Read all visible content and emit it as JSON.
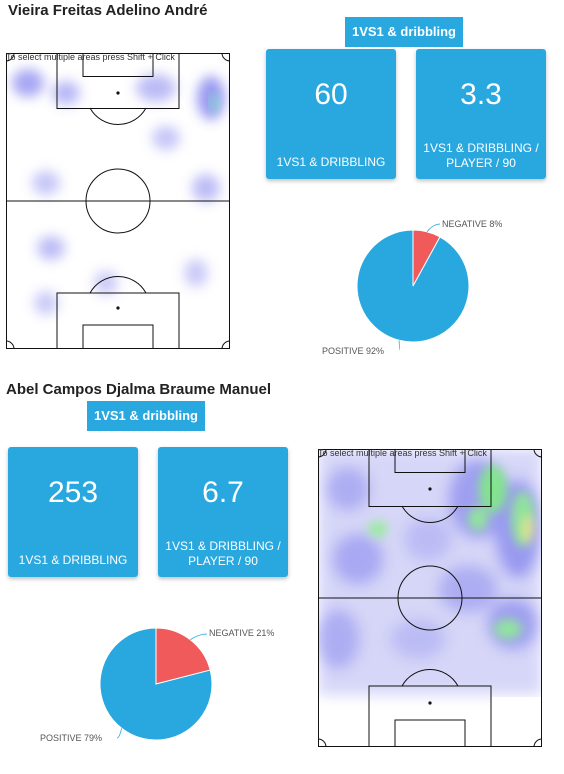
{
  "players": [
    {
      "name": "Vieira Freitas Adelino André",
      "badge": "1VS1 & dribbling",
      "pitch_hint": "To select multiple areas press Shift + Click",
      "stats": [
        {
          "value": "60",
          "label": "1VS1 & DRIBBLING"
        },
        {
          "value": "3.3",
          "label": "1VS1 & DRIBBLING / PLAYER / 90"
        }
      ],
      "pie_labels": {
        "negative": "NEGATIVE 8%",
        "positive": "POSITIVE 92%"
      }
    },
    {
      "name": "Abel Campos Djalma Braume Manuel",
      "badge": "1VS1 & dribbling",
      "pitch_hint": "To select multiple areas press Shift + Click",
      "stats": [
        {
          "value": "253",
          "label": "1VS1 & DRIBBLING"
        },
        {
          "value": "6.7",
          "label": "1VS1 & DRIBBLING / PLAYER / 90"
        }
      ],
      "pie_labels": {
        "negative": "NEGATIVE 21%",
        "positive": "POSITIVE 79%"
      }
    }
  ],
  "colors": {
    "accent": "#29a8e0",
    "positive": "#29a8e0",
    "negative": "#f05a5a",
    "heat_low": "#8f8ff0",
    "heat_mid": "#7ef07e",
    "heat_high": "#f0f07e"
  },
  "chart_data": [
    {
      "type": "pie",
      "slices": [
        {
          "label": "NEGATIVE",
          "value": 8
        },
        {
          "label": "POSITIVE",
          "value": 92
        }
      ]
    },
    {
      "type": "pie",
      "slices": [
        {
          "label": "NEGATIVE",
          "value": 21
        },
        {
          "label": "POSITIVE",
          "value": 79
        }
      ]
    }
  ]
}
